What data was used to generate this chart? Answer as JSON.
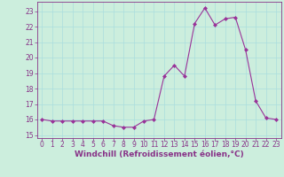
{
  "x": [
    0,
    1,
    2,
    3,
    4,
    5,
    6,
    7,
    8,
    9,
    10,
    11,
    12,
    13,
    14,
    15,
    16,
    17,
    18,
    19,
    20,
    21,
    22,
    23
  ],
  "y": [
    16.0,
    15.9,
    15.9,
    15.9,
    15.9,
    15.9,
    15.9,
    15.6,
    15.5,
    15.5,
    15.9,
    16.0,
    18.8,
    19.5,
    18.8,
    22.2,
    23.2,
    22.1,
    22.5,
    22.6,
    20.5,
    17.2,
    16.1,
    16.0
  ],
  "line_color": "#993399",
  "marker": "D",
  "marker_size": 2.0,
  "linewidth": 0.8,
  "xlabel": "Windchill (Refroidissement éolien,°C)",
  "xlabel_fontsize": 6.5,
  "xlim": [
    -0.5,
    23.5
  ],
  "ylim": [
    14.8,
    23.6
  ],
  "yticks": [
    15,
    16,
    17,
    18,
    19,
    20,
    21,
    22,
    23
  ],
  "xticks": [
    0,
    1,
    2,
    3,
    4,
    5,
    6,
    7,
    8,
    9,
    10,
    11,
    12,
    13,
    14,
    15,
    16,
    17,
    18,
    19,
    20,
    21,
    22,
    23
  ],
  "grid_color": "#aadddd",
  "bg_color": "#cceedd",
  "tick_fontsize": 5.5,
  "fig_bg_color": "#cceedd",
  "purple": "#883388"
}
